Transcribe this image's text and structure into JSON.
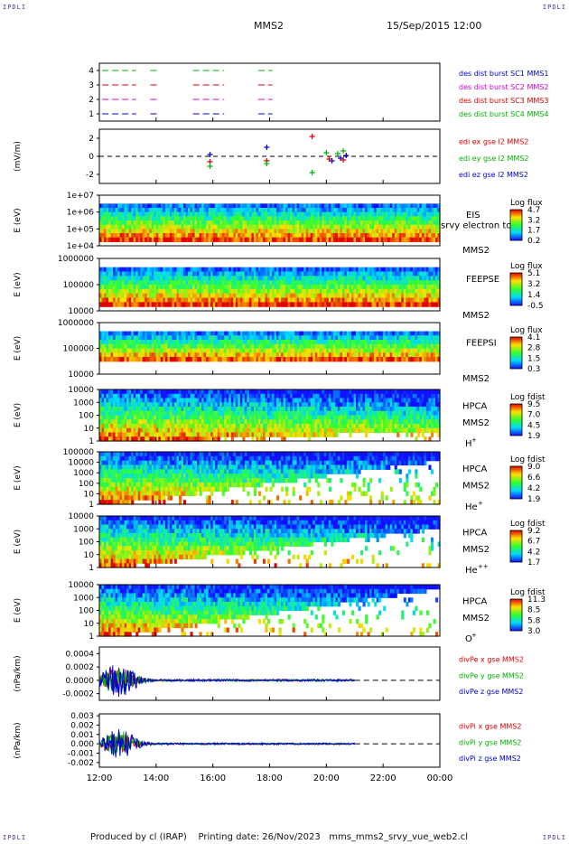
{
  "corner_label": "IPDLI",
  "header": {
    "spacecraft": "MMS2",
    "datetime": "15/Sep/2015 12:00"
  },
  "footer": {
    "produced_by": "Produced by cl (IRAP)",
    "printing_date": "Printing date: 26/Nov/2023",
    "filename": "mms_mms2_srvy_vue_web2.cl"
  },
  "colors": {
    "red": "#d80000",
    "green": "#00b000",
    "blue": "#0000d0",
    "magenta": "#d000d0",
    "black": "#000000"
  },
  "chart_data": {
    "type": "line",
    "x_axis": {
      "ticks": [
        "12:00",
        "14:00",
        "16:00",
        "18:00",
        "20:00",
        "22:00",
        "00:00"
      ],
      "range_hours": [
        12,
        24
      ]
    },
    "panels": [
      {
        "id": "burst",
        "type": "timeline",
        "yticks": [
          "1",
          "2",
          "3",
          "4"
        ],
        "ylim": [
          0.5,
          4.5
        ],
        "legend": [
          {
            "text": "des dist burst SC1 MMS1",
            "color": "#0000d0"
          },
          {
            "text": "des dist burst SC2 MMS2",
            "color": "#d000d0"
          },
          {
            "text": "des dist burst SC3 MMS3",
            "color": "#d80000"
          },
          {
            "text": "des dist burst SC4 MMS4",
            "color": "#00b000"
          }
        ],
        "rows": [
          {
            "level": 4,
            "color": "#00b000",
            "intervals": [
              [
                12.1,
                13.3
              ],
              [
                13.8,
                14.1
              ],
              [
                15.3,
                16.4
              ],
              [
                17.6,
                18.1
              ]
            ]
          },
          {
            "level": 3,
            "color": "#d80000",
            "intervals": [
              [
                12.1,
                13.3
              ],
              [
                13.8,
                14.1
              ],
              [
                15.3,
                16.4
              ],
              [
                17.6,
                18.1
              ]
            ]
          },
          {
            "level": 2,
            "color": "#d000d0",
            "intervals": [
              [
                12.1,
                13.3
              ],
              [
                13.8,
                14.1
              ],
              [
                15.3,
                16.4
              ],
              [
                17.6,
                18.1
              ]
            ]
          },
          {
            "level": 1,
            "color": "#0000d0",
            "intervals": [
              [
                12.1,
                13.3
              ],
              [
                13.8,
                14.1
              ],
              [
                15.3,
                16.4
              ],
              [
                17.6,
                18.1
              ]
            ]
          }
        ]
      },
      {
        "id": "edi",
        "type": "scatter",
        "ylabel": "(mV/m)",
        "yticks": [
          "2",
          "0",
          "-2"
        ],
        "ylim": [
          -3,
          3
        ],
        "legend": [
          {
            "text": "edi ex gse l2 MMS2",
            "color": "#d80000"
          },
          {
            "text": "edi ey gse l2 MMS2",
            "color": "#00b000"
          },
          {
            "text": "edi ez gse l2 MMS2",
            "color": "#0000d0"
          }
        ],
        "points": [
          {
            "x": 15.9,
            "y": 0.2,
            "color": "#0000d0"
          },
          {
            "x": 15.9,
            "y": -0.6,
            "color": "#d80000"
          },
          {
            "x": 15.9,
            "y": -1.1,
            "color": "#00b000"
          },
          {
            "x": 17.9,
            "y": 1.0,
            "color": "#0000d0"
          },
          {
            "x": 17.9,
            "y": -0.5,
            "color": "#d80000"
          },
          {
            "x": 17.9,
            "y": -0.8,
            "color": "#00b000"
          },
          {
            "x": 19.5,
            "y": 2.2,
            "color": "#d80000"
          },
          {
            "x": 19.5,
            "y": -1.8,
            "color": "#00b000"
          },
          {
            "x": 20.0,
            "y": 0.4,
            "color": "#00b000"
          },
          {
            "x": 20.1,
            "y": -0.3,
            "color": "#d80000"
          },
          {
            "x": 20.2,
            "y": -0.5,
            "color": "#0000d0"
          },
          {
            "x": 20.4,
            "y": 0.3,
            "color": "#00b000"
          },
          {
            "x": 20.5,
            "y": -0.2,
            "color": "#0000d0"
          },
          {
            "x": 20.6,
            "y": 0.6,
            "color": "#00b000"
          },
          {
            "x": 20.6,
            "y": -0.4,
            "color": "#d80000"
          },
          {
            "x": 20.7,
            "y": 0.1,
            "color": "#0000d0"
          }
        ]
      },
      {
        "id": "eis",
        "type": "heatmap",
        "ylabel": "E (eV)",
        "yticks": [
          "1e+07",
          "1e+06",
          "1e+05",
          "1e+04"
        ],
        "names": [
          "EIS",
          "MMS2"
        ],
        "overlay": "srvy electron to",
        "cbar": {
          "title": "Log flux",
          "values": [
            "4.7",
            "3.2",
            "1.7",
            "0.2"
          ]
        },
        "coverage": [
          0.12,
          0.88
        ]
      },
      {
        "id": "feepse",
        "type": "heatmap",
        "ylabel": "E (eV)",
        "yticks": [
          "1000000",
          "100000",
          "10000"
        ],
        "names": [
          "FEEPSE",
          "MMS2"
        ],
        "cbar": {
          "title": "Log flux",
          "values": [
            "5.1",
            "3.2",
            "1.4",
            "-0.5"
          ]
        },
        "coverage": [
          0.12,
          0.88
        ]
      },
      {
        "id": "feepsi",
        "type": "heatmap",
        "ylabel": "E (eV)",
        "yticks": [
          "1000000",
          "100000",
          "10000"
        ],
        "names": [
          "FEEPSI",
          "MMS2"
        ],
        "cbar": {
          "title": "Log flux",
          "values": [
            "4.1",
            "2.8",
            "1.5",
            "0.3"
          ]
        },
        "coverage": [
          0.12,
          0.72
        ]
      },
      {
        "id": "hpca-h",
        "type": "heatmap",
        "ylabel": "E (eV)",
        "yticks": [
          "10000",
          "1000",
          "100",
          "10",
          "1"
        ],
        "names": [
          "HPCA",
          "MMS2"
        ],
        "species": "H",
        "charge": "+",
        "cbar": {
          "title": "Log fdist",
          "values": [
            "9.5",
            "7.0",
            "4.5",
            "1.9"
          ]
        },
        "coverage": [
          0.0,
          0.85
        ]
      },
      {
        "id": "hpca-he",
        "type": "heatmap",
        "ylabel": "E (eV)",
        "yticks": [
          "100000",
          "10000",
          "1000",
          "100",
          "10",
          "1"
        ],
        "names": [
          "HPCA",
          "MMS2"
        ],
        "species": "He",
        "charge": "+",
        "cbar": {
          "title": "Log fdist",
          "values": [
            "9.0",
            "6.6",
            "4.2",
            "1.9"
          ]
        },
        "coverage": [
          0.0,
          0.45
        ]
      },
      {
        "id": "hpca-he2",
        "type": "heatmap",
        "ylabel": "E (eV)",
        "yticks": [
          "10000",
          "1000",
          "100",
          "10",
          "1"
        ],
        "names": [
          "HPCA",
          "MMS2"
        ],
        "species": "He",
        "charge": "++",
        "cbar": {
          "title": "Log fdist",
          "values": [
            "9.2",
            "6.7",
            "4.2",
            "1.7"
          ]
        },
        "coverage": [
          0.0,
          0.5
        ]
      },
      {
        "id": "hpca-o",
        "type": "heatmap",
        "ylabel": "E (eV)",
        "yticks": [
          "10000",
          "1000",
          "100",
          "10",
          "1"
        ],
        "names": [
          "HPCA",
          "MMS2"
        ],
        "species": "O",
        "charge": "+",
        "cbar": {
          "title": "Log fdist",
          "values": [
            "11.3",
            "8.5",
            "5.8",
            "3.0"
          ]
        },
        "coverage": [
          0.0,
          0.4
        ]
      },
      {
        "id": "divpe",
        "type": "line",
        "ylabel": "(nPa/km)",
        "yticks": [
          "0.0004",
          "0.0002",
          "0.0000",
          "-0.0002"
        ],
        "ylim": [
          -0.0003,
          0.0005
        ],
        "legend": [
          {
            "text": "divPe x gse MMS2",
            "color": "#d80000"
          },
          {
            "text": "divPe y gse MMS2",
            "color": "#00b000"
          },
          {
            "text": "divPe z gse MMS2",
            "color": "#0000d0"
          }
        ],
        "data_end_hour": 21.0,
        "amplitude": 0.00015
      },
      {
        "id": "divpi",
        "type": "line",
        "ylabel": "(nPa/km)",
        "yticks": [
          "0.003",
          "0.002",
          "0.001",
          "0.000",
          "-0.001",
          "-0.002"
        ],
        "ylim": [
          -0.0025,
          0.0032
        ],
        "legend": [
          {
            "text": "divPi x gse MMS2",
            "color": "#d80000"
          },
          {
            "text": "divPi y gse MMS2",
            "color": "#00b000"
          },
          {
            "text": "divPi z gse MMS2",
            "color": "#0000d0"
          }
        ],
        "data_end_hour": 21.0,
        "amplitude": 0.0009
      }
    ]
  }
}
